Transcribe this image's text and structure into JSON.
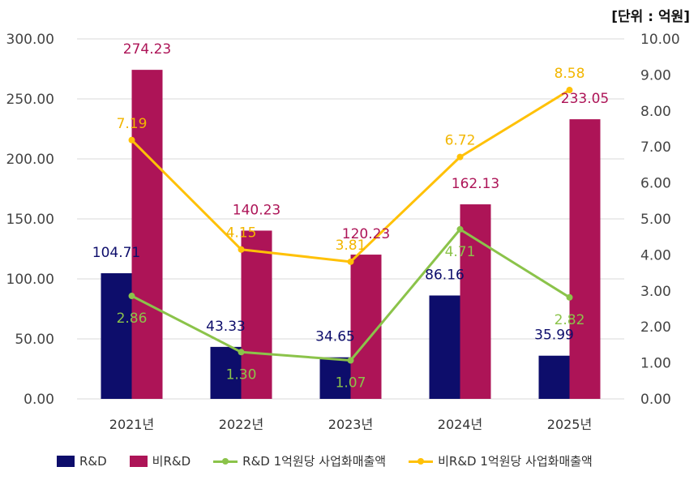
{
  "unit_label": "[단위 : 억원]",
  "colors": {
    "rd": "#0d0d6b",
    "non_rd": "#ad1457",
    "rd_line": "#8bc34a",
    "non_rd_line": "#ffc107",
    "rd_label": "#0d0d6b",
    "non_rd_label": "#ad1457",
    "rd_line_label": "#8bc34a",
    "non_rd_line_label": "#f2b600"
  },
  "chart_data": {
    "type": "bar",
    "categories": [
      "2021년",
      "2022년",
      "2023년",
      "2024년",
      "2025년"
    ],
    "y_left": {
      "lim": [
        0,
        300
      ],
      "ticks": [
        "0.00",
        "50.00",
        "100.00",
        "150.00",
        "200.00",
        "250.00",
        "300.00"
      ]
    },
    "y_right": {
      "lim": [
        0,
        10
      ],
      "ticks": [
        "0.00",
        "1.00",
        "2.00",
        "3.00",
        "4.00",
        "5.00",
        "6.00",
        "7.00",
        "8.00",
        "9.00",
        "10.00"
      ]
    },
    "grid": true,
    "legend_position": "bottom",
    "series": [
      {
        "name": "R&D",
        "type": "bar",
        "axis": "left",
        "values": [
          104.71,
          43.33,
          34.65,
          86.16,
          35.99
        ],
        "labels": [
          "104.71",
          "43.33",
          "34.65",
          "86.16",
          "35.99"
        ]
      },
      {
        "name": "비R&D",
        "type": "bar",
        "axis": "left",
        "values": [
          274.23,
          140.23,
          120.23,
          162.13,
          233.05
        ],
        "labels": [
          "274.23",
          "140.23",
          "120.23",
          "162.13",
          "233.05"
        ]
      },
      {
        "name": "R&D 1억원당 사업화매출액",
        "type": "line",
        "axis": "right",
        "values": [
          2.86,
          1.3,
          1.07,
          4.71,
          2.82
        ],
        "labels": [
          "2.86",
          "1.30",
          "1.07",
          "4.71",
          "2.82"
        ]
      },
      {
        "name": "비R&D 1억원당 사업화매출액",
        "type": "line",
        "axis": "right",
        "values": [
          7.19,
          4.15,
          3.81,
          6.72,
          8.58
        ],
        "labels": [
          "7.19",
          "4.15",
          "3.81",
          "6.72",
          "8.58"
        ]
      }
    ]
  }
}
